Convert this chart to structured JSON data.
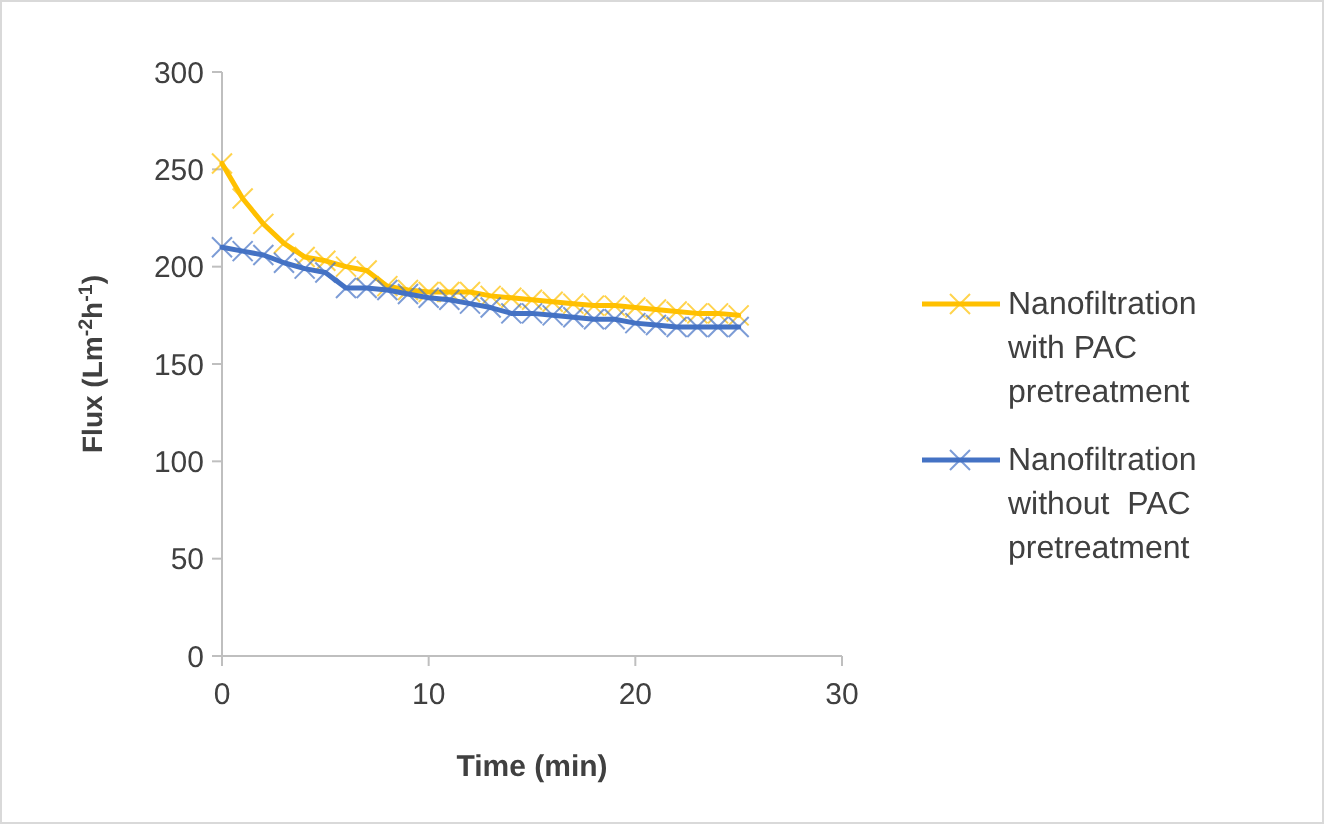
{
  "chart_data": {
    "type": "line",
    "xlabel": "Time (min)",
    "ylabel": "Flux (Lm$^{-2}$h$^{-1}$)",
    "x": [
      0,
      1,
      2,
      3,
      4,
      5,
      6,
      7,
      8,
      9,
      10,
      11,
      12,
      13,
      14,
      15,
      16,
      17,
      18,
      19,
      20,
      21,
      22,
      23,
      24,
      25
    ],
    "series": [
      {
        "name": "Nanofiltration with PAC pretreatment",
        "color": "#ffc000",
        "marker": "cross",
        "values": [
          253,
          235,
          222,
          212,
          205,
          203,
          200,
          198,
          190,
          188,
          187,
          187,
          187,
          185,
          184,
          183,
          182,
          181,
          180,
          180,
          179,
          178,
          177,
          176,
          176,
          175
        ]
      },
      {
        "name": "Nanofiltration without  PAC pretreatment",
        "color": "#4472c4",
        "marker": "cross",
        "values": [
          210,
          208,
          206,
          202,
          199,
          197,
          189,
          189,
          188,
          186,
          184,
          183,
          181,
          179,
          176,
          176,
          175,
          174,
          173,
          173,
          171,
          170,
          169,
          169,
          169,
          169
        ]
      }
    ],
    "xlim": [
      0,
      30
    ],
    "xticks": [
      0,
      10,
      20,
      30
    ],
    "ylim": [
      0,
      300
    ],
    "yticks": [
      0,
      50,
      100,
      150,
      200,
      250,
      300
    ],
    "grid": false,
    "legend": "right",
    "line_style": "solid"
  }
}
